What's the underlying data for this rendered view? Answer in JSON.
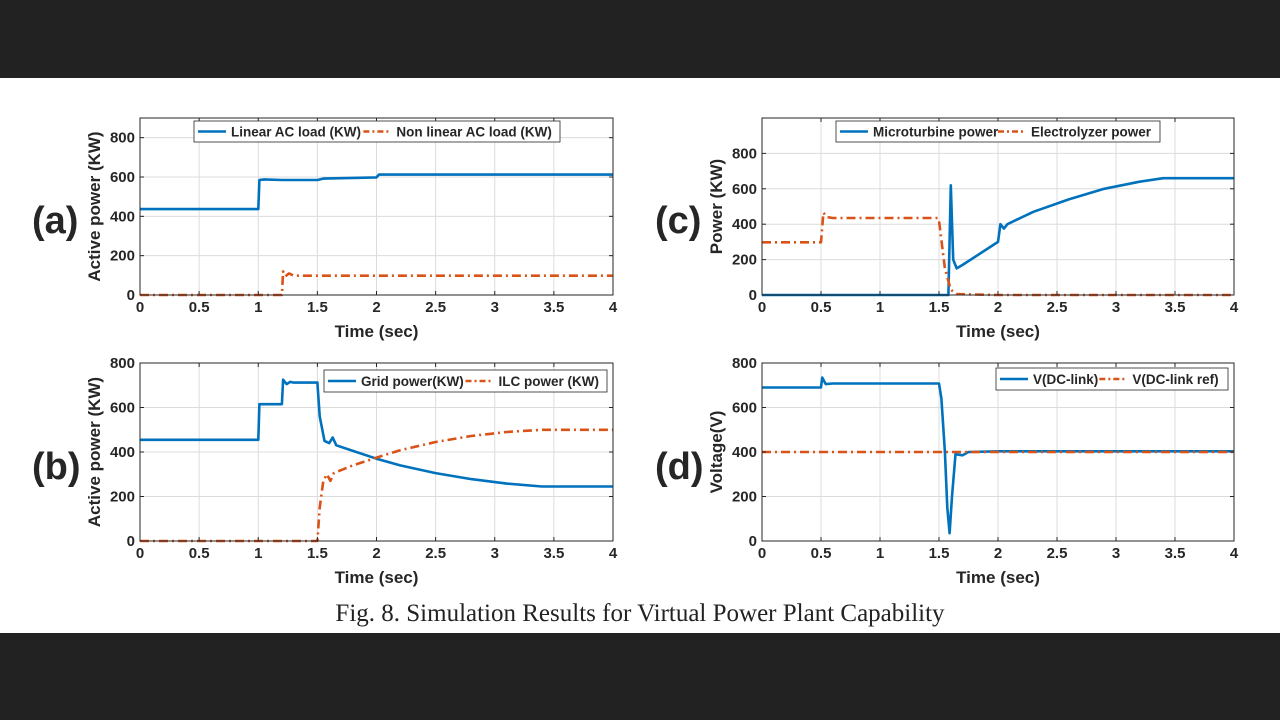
{
  "figure": {
    "caption": "Fig. 8.  Simulation Results for Virtual Power Plant Capability",
    "colors": {
      "blue": "#0072BD",
      "orange": "#D95319",
      "grid": "#DCDCDC",
      "axis": "#262626",
      "background": "#222222"
    }
  },
  "chart_data": [
    {
      "panel_label": "(a)",
      "type": "line",
      "xlabel": "Time (sec)",
      "ylabel": "Active power (KW)",
      "xlim": [
        0,
        4
      ],
      "ylim": [
        0,
        900
      ],
      "xticks": [
        "0",
        "0.5",
        "1",
        "1.5",
        "2",
        "2.5",
        "3",
        "3.5",
        "4"
      ],
      "yticks": [
        "0",
        "200",
        "400",
        "600",
        "800"
      ],
      "grid": true,
      "legend_position": "top-center",
      "series": [
        {
          "name": "Linear AC load (KW)",
          "style": "solid",
          "color": "#0072BD",
          "points": [
            [
              0,
              437
            ],
            [
              1.0,
              437
            ],
            [
              1.01,
              585
            ],
            [
              1.05,
              588
            ],
            [
              1.2,
              585
            ],
            [
              1.5,
              585
            ],
            [
              1.55,
              592
            ],
            [
              2.0,
              598
            ],
            [
              2.02,
              612
            ],
            [
              2.5,
              612
            ],
            [
              3.0,
              612
            ],
            [
              3.5,
              612
            ],
            [
              4.0,
              612
            ]
          ]
        },
        {
          "name": "Non linear AC load (KW)",
          "style": "dashdot",
          "color": "#D95319",
          "points": [
            [
              0,
              0
            ],
            [
              1.2,
              0
            ],
            [
              1.21,
              120
            ],
            [
              1.23,
              95
            ],
            [
              1.26,
              110
            ],
            [
              1.3,
              98
            ],
            [
              1.6,
              98
            ],
            [
              2.0,
              98
            ],
            [
              3.0,
              98
            ],
            [
              4.0,
              98
            ]
          ]
        }
      ]
    },
    {
      "panel_label": "(b)",
      "type": "line",
      "xlabel": "Time (sec)",
      "ylabel": "Active power (KW)",
      "xlim": [
        0,
        4
      ],
      "ylim": [
        0,
        800
      ],
      "xticks": [
        "0",
        "0.5",
        "1",
        "1.5",
        "2",
        "2.5",
        "3",
        "3.5",
        "4"
      ],
      "yticks": [
        "0",
        "200",
        "400",
        "600",
        "800"
      ],
      "grid": true,
      "legend_position": "top-right",
      "series": [
        {
          "name": "Grid power(KW)",
          "style": "solid",
          "color": "#0072BD",
          "points": [
            [
              0,
              455
            ],
            [
              0.5,
              455
            ],
            [
              1.0,
              455
            ],
            [
              1.01,
              615
            ],
            [
              1.2,
              615
            ],
            [
              1.21,
              725
            ],
            [
              1.24,
              705
            ],
            [
              1.27,
              715
            ],
            [
              1.3,
              712
            ],
            [
              1.5,
              712
            ],
            [
              1.52,
              560
            ],
            [
              1.56,
              450
            ],
            [
              1.6,
              440
            ],
            [
              1.63,
              465
            ],
            [
              1.66,
              430
            ],
            [
              1.8,
              405
            ],
            [
              2.0,
              370
            ],
            [
              2.2,
              340
            ],
            [
              2.5,
              305
            ],
            [
              2.8,
              278
            ],
            [
              3.1,
              258
            ],
            [
              3.4,
              245
            ],
            [
              3.7,
              245
            ],
            [
              4.0,
              245
            ]
          ]
        },
        {
          "name": "ILC power (KW)",
          "style": "dashdot",
          "color": "#D95319",
          "points": [
            [
              0,
              0
            ],
            [
              1.5,
              0
            ],
            [
              1.52,
              150
            ],
            [
              1.55,
              270
            ],
            [
              1.58,
              300
            ],
            [
              1.61,
              270
            ],
            [
              1.64,
              305
            ],
            [
              1.8,
              340
            ],
            [
              2.0,
              375
            ],
            [
              2.2,
              408
            ],
            [
              2.5,
              445
            ],
            [
              2.8,
              472
            ],
            [
              3.1,
              490
            ],
            [
              3.4,
              500
            ],
            [
              3.7,
              500
            ],
            [
              4.0,
              500
            ]
          ]
        }
      ]
    },
    {
      "panel_label": "(c)",
      "type": "line",
      "xlabel": "Time (sec)",
      "ylabel": "Power (KW)",
      "xlim": [
        0,
        4
      ],
      "ylim": [
        0,
        1000
      ],
      "xticks": [
        "0",
        "0.5",
        "1",
        "1.5",
        "2",
        "2.5",
        "3",
        "3.5",
        "4"
      ],
      "yticks": [
        "0",
        "200",
        "400",
        "600",
        "800"
      ],
      "grid": true,
      "legend_position": "top-center",
      "series": [
        {
          "name": "Microturbine power",
          "style": "solid",
          "color": "#0072BD",
          "points": [
            [
              0,
              0
            ],
            [
              1.5,
              0
            ],
            [
              1.58,
              0
            ],
            [
              1.6,
              620
            ],
            [
              1.62,
              200
            ],
            [
              1.65,
              150
            ],
            [
              1.7,
              170
            ],
            [
              2.0,
              300
            ],
            [
              2.02,
              400
            ],
            [
              2.05,
              375
            ],
            [
              2.08,
              400
            ],
            [
              2.3,
              470
            ],
            [
              2.6,
              540
            ],
            [
              2.9,
              600
            ],
            [
              3.2,
              640
            ],
            [
              3.4,
              660
            ],
            [
              4.0,
              660
            ]
          ]
        },
        {
          "name": "Electrolyzer power",
          "style": "dashdot",
          "color": "#D95319",
          "points": [
            [
              0,
              298
            ],
            [
              0.5,
              298
            ],
            [
              0.52,
              465
            ],
            [
              0.55,
              440
            ],
            [
              0.6,
              435
            ],
            [
              1.0,
              435
            ],
            [
              1.49,
              435
            ],
            [
              1.5,
              420
            ],
            [
              1.55,
              150
            ],
            [
              1.6,
              30
            ],
            [
              1.65,
              5
            ],
            [
              2.0,
              0
            ],
            [
              4.0,
              0
            ]
          ]
        }
      ]
    },
    {
      "panel_label": "(d)",
      "type": "line",
      "xlabel": "Time (sec)",
      "ylabel": "Voltage(V)",
      "xlim": [
        0,
        4
      ],
      "ylim": [
        0,
        800
      ],
      "xticks": [
        "0",
        "0.5",
        "1",
        "1.5",
        "2",
        "2.5",
        "3",
        "3.5",
        "4"
      ],
      "yticks": [
        "0",
        "200",
        "400",
        "600",
        "800"
      ],
      "grid": true,
      "legend_position": "top-right",
      "series": [
        {
          "name": "V(DC-link)",
          "style": "solid",
          "color": "#0072BD",
          "points": [
            [
              0,
              690
            ],
            [
              0.5,
              690
            ],
            [
              0.51,
              735
            ],
            [
              0.54,
              705
            ],
            [
              0.6,
              708
            ],
            [
              1.0,
              708
            ],
            [
              1.5,
              708
            ],
            [
              1.52,
              640
            ],
            [
              1.55,
              400
            ],
            [
              1.57,
              150
            ],
            [
              1.59,
              35
            ],
            [
              1.61,
              200
            ],
            [
              1.64,
              390
            ],
            [
              1.7,
              385
            ],
            [
              1.75,
              400
            ],
            [
              2.0,
              403
            ],
            [
              2.5,
              403
            ],
            [
              3.0,
              403
            ],
            [
              4.0,
              403
            ]
          ]
        },
        {
          "name": "V(DC-link ref)",
          "style": "dashdot",
          "color": "#D95319",
          "points": [
            [
              0,
              400
            ],
            [
              4.0,
              400
            ]
          ]
        }
      ]
    }
  ]
}
